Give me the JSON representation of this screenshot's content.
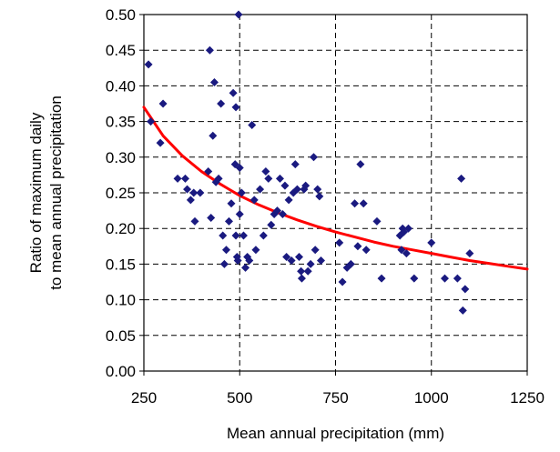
{
  "chart_data": {
    "type": "scatter",
    "xlabel": "Mean annual precipitation (mm)",
    "ylabel_lines": [
      "Ratio of maximum daily",
      "to mean annual precipitation"
    ],
    "xlim": [
      250,
      1250
    ],
    "ylim": [
      0,
      0.5
    ],
    "x_ticks": [
      250,
      500,
      750,
      1000,
      1250
    ],
    "x_tick_labels": [
      "250",
      "500",
      "750",
      "1000",
      "1250"
    ],
    "y_ticks": [
      0,
      0.05,
      0.1,
      0.15,
      0.2,
      0.25,
      0.3,
      0.35,
      0.4,
      0.45,
      0.5
    ],
    "y_tick_labels": [
      "0.00",
      "0.05",
      "0.10",
      "0.15",
      "0.20",
      "0.25",
      "0.30",
      "0.35",
      "0.40",
      "0.45",
      "0.50"
    ],
    "grid": true,
    "grid_style": "dashed",
    "colors": {
      "points": "#1a1a80",
      "trend": "#ff0000",
      "grid": "#000000",
      "axes": "#000000"
    },
    "series": [
      {
        "kind": "points",
        "points": [
          [
            262,
            0.43
          ],
          [
            268,
            0.35
          ],
          [
            293,
            0.32
          ],
          [
            300,
            0.375
          ],
          [
            338,
            0.27
          ],
          [
            358,
            0.27
          ],
          [
            363,
            0.255
          ],
          [
            372,
            0.24
          ],
          [
            380,
            0.25
          ],
          [
            383,
            0.21
          ],
          [
            397,
            0.25
          ],
          [
            418,
            0.28
          ],
          [
            422,
            0.45
          ],
          [
            425,
            0.215
          ],
          [
            430,
            0.33
          ],
          [
            434,
            0.405
          ],
          [
            438,
            0.265
          ],
          [
            445,
            0.27
          ],
          [
            451,
            0.375
          ],
          [
            456,
            0.19
          ],
          [
            460,
            0.15
          ],
          [
            465,
            0.17
          ],
          [
            472,
            0.21
          ],
          [
            478,
            0.235
          ],
          [
            483,
            0.39
          ],
          [
            488,
            0.29
          ],
          [
            490,
            0.37
          ],
          [
            490,
            0.19
          ],
          [
            493,
            0.16
          ],
          [
            495,
            0.155
          ],
          [
            497,
            0.5
          ],
          [
            500,
            0.285
          ],
          [
            500,
            0.22
          ],
          [
            505,
            0.25
          ],
          [
            510,
            0.19
          ],
          [
            515,
            0.145
          ],
          [
            520,
            0.16
          ],
          [
            525,
            0.155
          ],
          [
            532,
            0.345
          ],
          [
            538,
            0.24
          ],
          [
            542,
            0.17
          ],
          [
            553,
            0.255
          ],
          [
            562,
            0.19
          ],
          [
            568,
            0.28
          ],
          [
            575,
            0.27
          ],
          [
            582,
            0.205
          ],
          [
            590,
            0.22
          ],
          [
            598,
            0.225
          ],
          [
            605,
            0.27
          ],
          [
            612,
            0.22
          ],
          [
            618,
            0.26
          ],
          [
            622,
            0.16
          ],
          [
            628,
            0.24
          ],
          [
            635,
            0.155
          ],
          [
            640,
            0.25
          ],
          [
            645,
            0.29
          ],
          [
            650,
            0.255
          ],
          [
            655,
            0.16
          ],
          [
            660,
            0.14
          ],
          [
            662,
            0.13
          ],
          [
            668,
            0.255
          ],
          [
            672,
            0.26
          ],
          [
            678,
            0.14
          ],
          [
            685,
            0.15
          ],
          [
            693,
            0.3
          ],
          [
            697,
            0.17
          ],
          [
            703,
            0.255
          ],
          [
            708,
            0.245
          ],
          [
            712,
            0.155
          ],
          [
            760,
            0.18
          ],
          [
            768,
            0.125
          ],
          [
            780,
            0.145
          ],
          [
            790,
            0.15
          ],
          [
            800,
            0.235
          ],
          [
            808,
            0.175
          ],
          [
            815,
            0.29
          ],
          [
            823,
            0.235
          ],
          [
            830,
            0.17
          ],
          [
            858,
            0.21
          ],
          [
            870,
            0.13
          ],
          [
            918,
            0.19
          ],
          [
            922,
            0.17
          ],
          [
            925,
            0.2
          ],
          [
            928,
            0.195
          ],
          [
            935,
            0.165
          ],
          [
            940,
            0.2
          ],
          [
            955,
            0.13
          ],
          [
            1000,
            0.18
          ],
          [
            1035,
            0.13
          ],
          [
            1068,
            0.13
          ],
          [
            1078,
            0.27
          ],
          [
            1082,
            0.085
          ],
          [
            1088,
            0.115
          ],
          [
            1100,
            0.165
          ]
        ]
      },
      {
        "kind": "trend",
        "points": [
          [
            250,
            0.37
          ],
          [
            300,
            0.33
          ],
          [
            350,
            0.302
          ],
          [
            400,
            0.28
          ],
          [
            450,
            0.262
          ],
          [
            500,
            0.246
          ],
          [
            550,
            0.233
          ],
          [
            600,
            0.222
          ],
          [
            650,
            0.212
          ],
          [
            700,
            0.203
          ],
          [
            750,
            0.195
          ],
          [
            800,
            0.188
          ],
          [
            850,
            0.181
          ],
          [
            900,
            0.175
          ],
          [
            950,
            0.17
          ],
          [
            1000,
            0.165
          ],
          [
            1050,
            0.16
          ],
          [
            1100,
            0.155
          ],
          [
            1150,
            0.151
          ],
          [
            1200,
            0.147
          ],
          [
            1250,
            0.143
          ]
        ]
      }
    ]
  }
}
